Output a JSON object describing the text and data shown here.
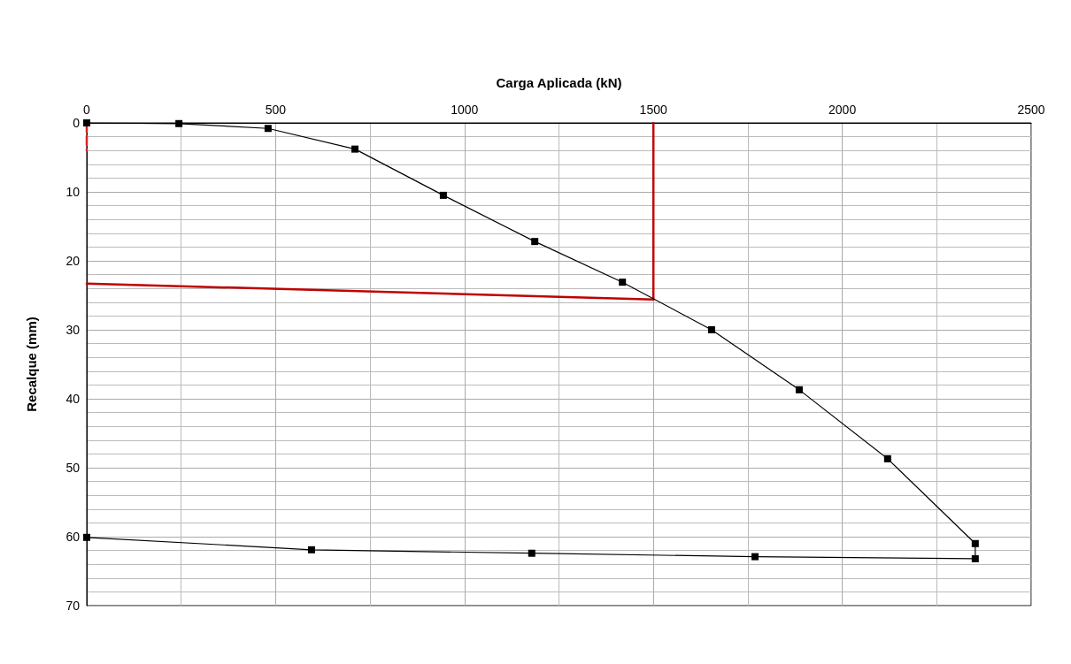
{
  "chart_data": {
    "type": "line",
    "xlabel": "Carga Aplicada (kN)",
    "ylabel": "Recalque (mm)",
    "xlim": [
      0,
      2500
    ],
    "xticks": [
      0,
      500,
      1000,
      1500,
      2000,
      2500
    ],
    "ylim": [
      70,
      0
    ],
    "yticks": [
      0,
      10,
      20,
      30,
      40,
      50,
      60,
      70
    ],
    "grid": true,
    "marker": "square",
    "line_style": "solid",
    "series": [
      {
        "color": "#000000",
        "x": [
          0,
          244,
          480,
          710,
          944,
          1186,
          1418,
          1654,
          1886,
          2120,
          2352,
          2352,
          1769,
          1178,
          595,
          0
        ],
        "values": [
          0,
          0.1,
          0.8,
          3.8,
          10.5,
          17.2,
          23.1,
          30.0,
          38.7,
          48.7,
          61.0,
          63.2,
          62.9,
          62.4,
          61.9,
          60.1
        ]
      },
      {
        "color": "#c00000",
        "marker": "none",
        "x": [
          0,
          1500
        ],
        "values": [
          23.3,
          25.6
        ]
      },
      {
        "color": "#c00000",
        "marker": "none",
        "x": [
          1500,
          1500
        ],
        "values": [
          0,
          25.6
        ]
      },
      {
        "color": "#e02020",
        "marker": "none",
        "line_style": "dashed",
        "x": [
          0,
          0
        ],
        "values": [
          0,
          4
        ]
      }
    ]
  }
}
